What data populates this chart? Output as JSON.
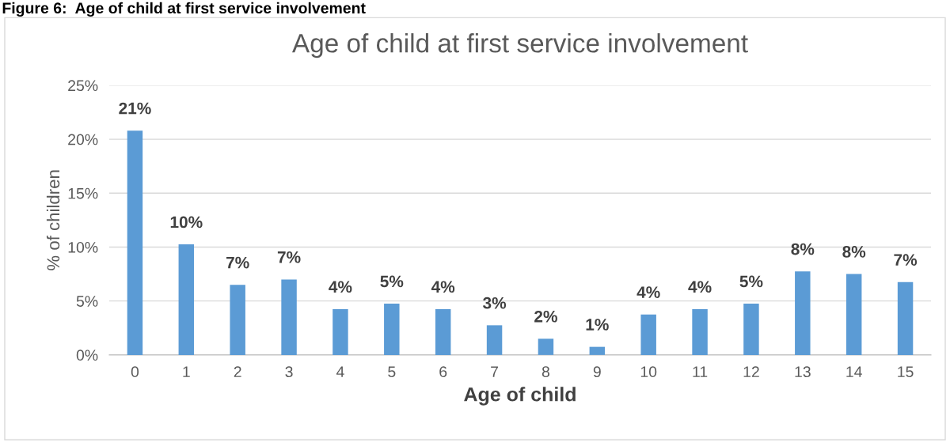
{
  "chart_data": {
    "type": "bar",
    "title": "Age of child at first service involvement",
    "xlabel": "Age of child",
    "ylabel": "% of children",
    "annotations": [
      "Figure 6:  Age of child at first service involvement"
    ],
    "categories": [
      "0",
      "1",
      "2",
      "3",
      "4",
      "5",
      "6",
      "7",
      "8",
      "9",
      "10",
      "11",
      "12",
      "13",
      "14",
      "15"
    ],
    "values": [
      20.8,
      10.25,
      6.5,
      7.0,
      4.25,
      4.75,
      4.25,
      2.75,
      1.5,
      0.75,
      3.75,
      4.25,
      4.75,
      7.75,
      7.5,
      6.75
    ],
    "value_labels": [
      "21%",
      "10%",
      "7%",
      "7%",
      "4%",
      "5%",
      "4%",
      "3%",
      "2%",
      "1%",
      "4%",
      "4%",
      "5%",
      "8%",
      "8%",
      "7%"
    ],
    "color": "#5b9bd5",
    "ylim": [
      0,
      25
    ],
    "yticks": [
      {
        "value": 0,
        "label": "0%"
      },
      {
        "value": 5,
        "label": "5%"
      },
      {
        "value": 10,
        "label": "10%"
      },
      {
        "value": 15,
        "label": "15%"
      },
      {
        "value": 20,
        "label": "20%"
      },
      {
        "value": 25,
        "label": "25%"
      }
    ],
    "grid": "y",
    "legend": false
  }
}
